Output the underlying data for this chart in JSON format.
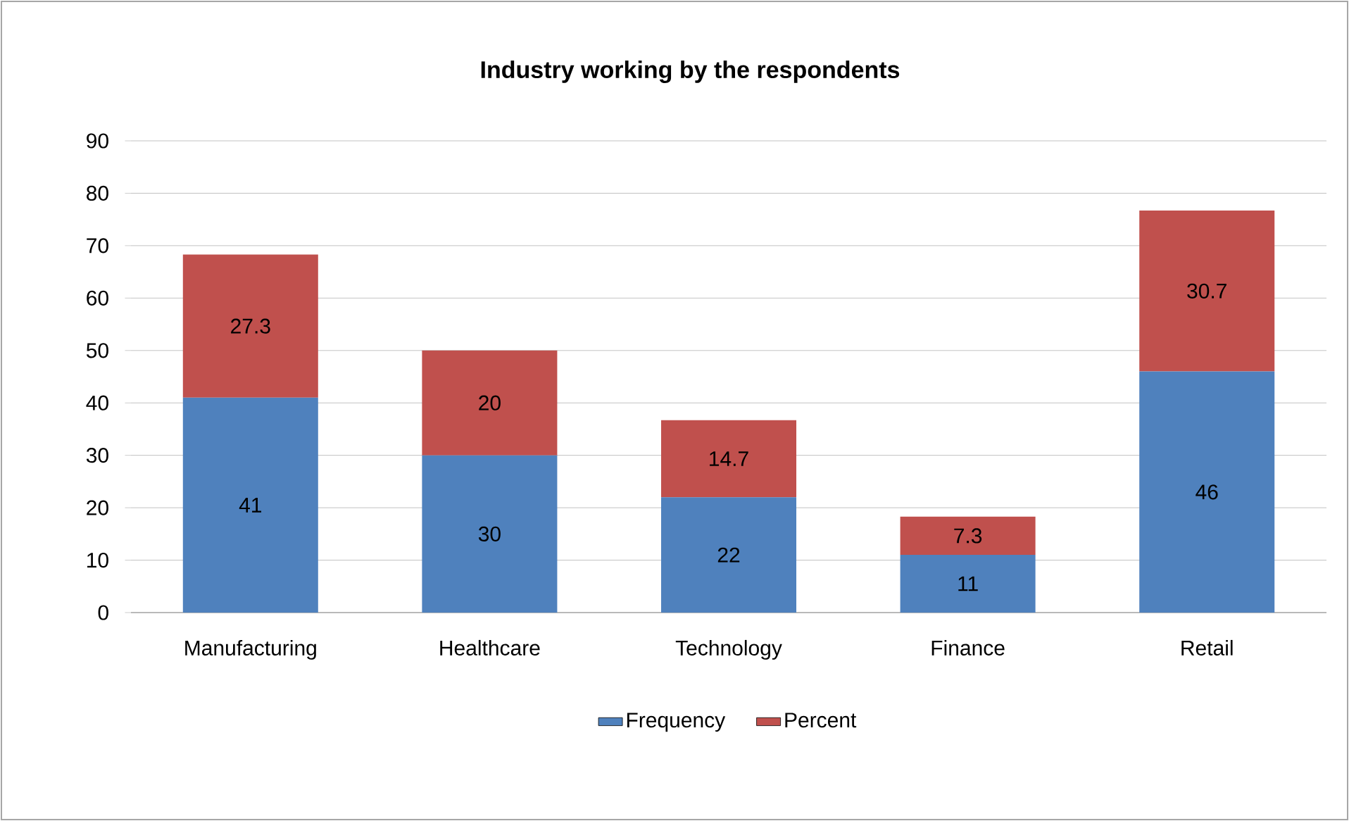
{
  "chart_data": {
    "type": "bar",
    "stacked": true,
    "title": "Industry working by the respondents",
    "categories": [
      "Manufacturing",
      "Healthcare",
      "Technology",
      "Finance",
      "Retail"
    ],
    "series": [
      {
        "name": "Frequency",
        "color": "#4f81bd",
        "values": [
          41,
          30,
          22,
          11,
          46
        ]
      },
      {
        "name": "Percent",
        "color": "#c0504d",
        "values": [
          27.3,
          20,
          14.7,
          7.3,
          30.7
        ]
      }
    ],
    "ylim": [
      0,
      90
    ],
    "yticks": [
      0,
      10,
      20,
      30,
      40,
      50,
      60,
      70,
      80,
      90
    ],
    "grid": "y",
    "legend": "bottom",
    "data_labels": true
  }
}
